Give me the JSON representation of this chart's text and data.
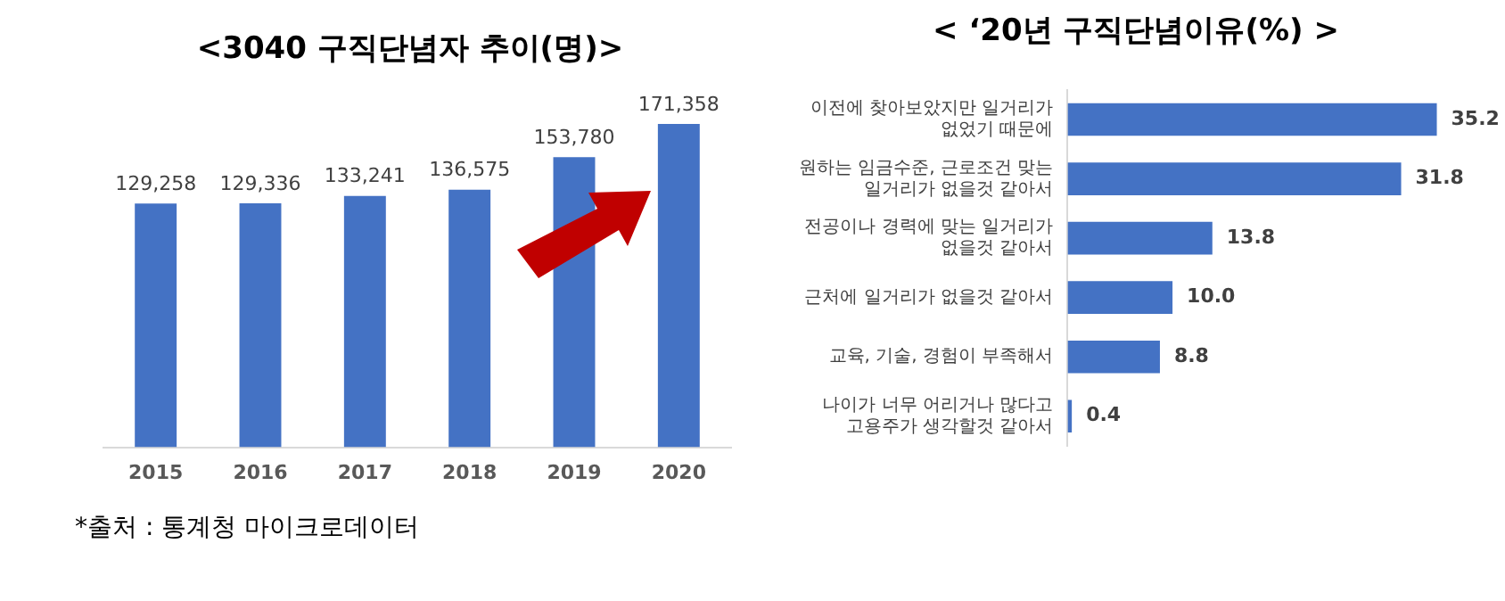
{
  "chart_data": [
    {
      "type": "bar",
      "title": "<3040 구직단념자 추이(명)>",
      "categories": [
        "2015",
        "2016",
        "2017",
        "2018",
        "2019",
        "2020"
      ],
      "values": [
        129258,
        129336,
        133241,
        136575,
        153780,
        171358
      ],
      "color": "#4472c4",
      "value_labels": [
        "129,258",
        "129,336",
        "133,241",
        "136,575",
        "153,780",
        "171,358"
      ],
      "tick_labels": "x",
      "grid": false,
      "legend": false,
      "annotations": [
        "*출처 : 통계청 마이크로데이터"
      ]
    },
    {
      "type": "bar",
      "orientation": "horizontal",
      "title": "< ‘20년 구직단념이유(%) >",
      "categories": [
        "이전에 찾아보았지만 일거리가\n없었기 때문에",
        "원하는 임금수준, 근로조건 맞는\n일거리가 없을것 같아서",
        "전공이나 경력에 맞는 일거리가\n없을것 같아서",
        "근처에 일거리가 없을것 같아서",
        "교육, 기술, 경험이 부족해서",
        "나이가 너무 어리거나 많다고\n고용주가 생각할것 같아서"
      ],
      "values": [
        35.2,
        31.8,
        13.8,
        10.0,
        8.8,
        0.4
      ],
      "color": "#4472c4",
      "value_labels": [
        "35.2",
        "31.8",
        "13.8",
        "10.0",
        "8.8",
        "0.4"
      ],
      "tick_labels": "y",
      "grid": false,
      "legend": false
    }
  ]
}
